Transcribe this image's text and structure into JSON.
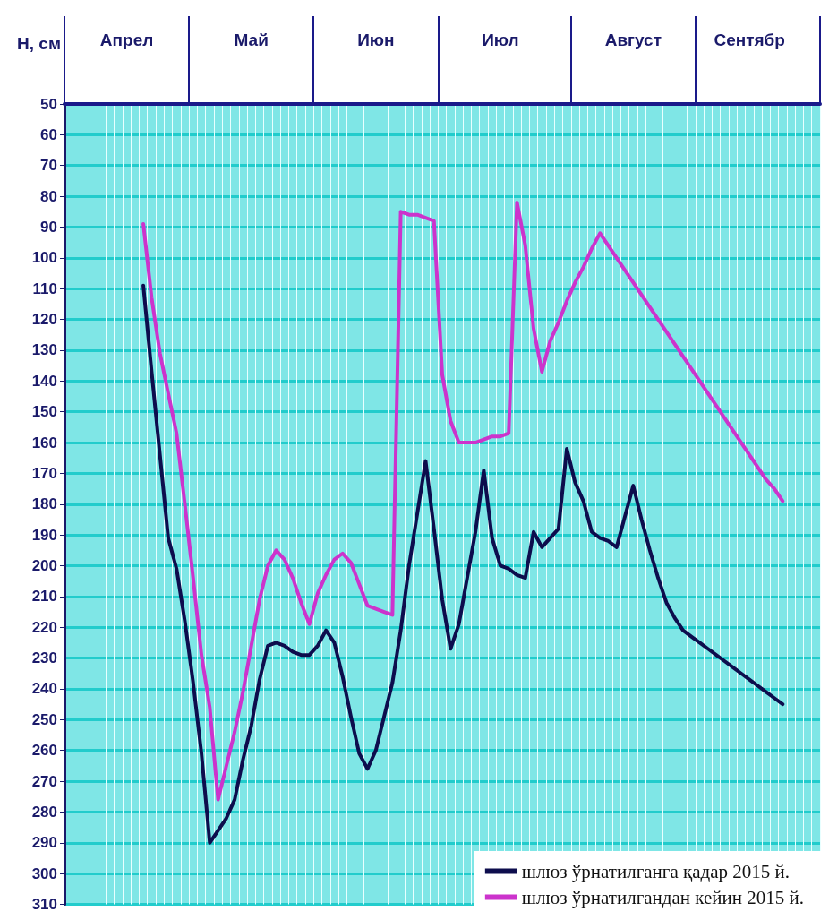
{
  "chart_data": {
    "type": "line",
    "ylabel": "Н, см",
    "categories": [
      null,
      null,
      null,
      null,
      null,
      null,
      null,
      "Апрел",
      null,
      null,
      null,
      null,
      null,
      null,
      null,
      null,
      null,
      null,
      null,
      null,
      null,
      null,
      "Май",
      null,
      null,
      null,
      null,
      null,
      null,
      null,
      null,
      null,
      null,
      null,
      null,
      null,
      null,
      "Июн",
      null,
      null,
      null,
      null,
      null,
      null,
      null,
      null,
      null,
      null,
      null,
      null,
      null,
      null,
      "Июл",
      null,
      null,
      null,
      null,
      null,
      null,
      null,
      null,
      null,
      null,
      null,
      null,
      null,
      null,
      null,
      "Август",
      null,
      null,
      null,
      null,
      null,
      null,
      null,
      null,
      null,
      null,
      null,
      null,
      null,
      "Сентябр",
      null,
      null,
      null,
      null,
      null,
      null,
      null,
      null
    ],
    "ylim": [
      310,
      50
    ],
    "yticks": [
      50,
      60,
      70,
      80,
      90,
      100,
      110,
      120,
      130,
      140,
      150,
      160,
      170,
      180,
      190,
      200,
      210,
      220,
      230,
      240,
      250,
      260,
      270,
      280,
      290,
      300,
      310
    ],
    "grid": true,
    "legend": "bottom right",
    "marker": "none",
    "line_style": "solid",
    "series": [
      {
        "name": "шлюз ўрнатилганга қадар 2015 й.",
        "color": "#0d0d4d",
        "values": [
          null,
          null,
          null,
          null,
          null,
          null,
          null,
          null,
          null,
          109,
          137,
          164,
          191,
          201,
          218,
          238,
          261,
          290,
          286,
          282,
          276,
          263,
          252,
          237,
          226,
          225,
          226,
          228,
          229,
          229,
          226,
          221,
          225,
          236,
          249,
          261,
          266,
          260,
          249,
          238,
          221,
          200,
          183,
          166,
          188,
          211,
          227,
          219,
          204,
          189,
          169,
          191,
          200,
          201,
          203,
          204,
          189,
          194,
          191,
          188,
          162,
          173,
          179,
          189,
          191,
          192,
          194,
          184,
          174,
          185,
          195,
          204,
          212,
          217,
          221,
          223,
          225,
          227,
          229,
          231,
          233,
          235,
          237,
          239,
          241,
          243,
          245,
          null,
          null,
          null,
          null
        ]
      },
      {
        "name": "шлюз ўрнатилгандан кейин 2015 й.",
        "color": "#cc33cc",
        "values": [
          null,
          null,
          null,
          null,
          null,
          null,
          null,
          null,
          null,
          89,
          113,
          131,
          144,
          157,
          180,
          204,
          229,
          246,
          276,
          265,
          254,
          241,
          226,
          211,
          200,
          195,
          198,
          204,
          212,
          219,
          209,
          203,
          198,
          196,
          199,
          206,
          213,
          214,
          215,
          216,
          85,
          86,
          86,
          87,
          88,
          138,
          153,
          160,
          160,
          160,
          159,
          158,
          158,
          157,
          82,
          96,
          123,
          137,
          127,
          121,
          114,
          108,
          103,
          97,
          92,
          96,
          100,
          104,
          108,
          112,
          116,
          120,
          124,
          128,
          132,
          136,
          140,
          144,
          148,
          152,
          156,
          160,
          164,
          168,
          172,
          175,
          179,
          null,
          null,
          null,
          null
        ]
      }
    ]
  }
}
